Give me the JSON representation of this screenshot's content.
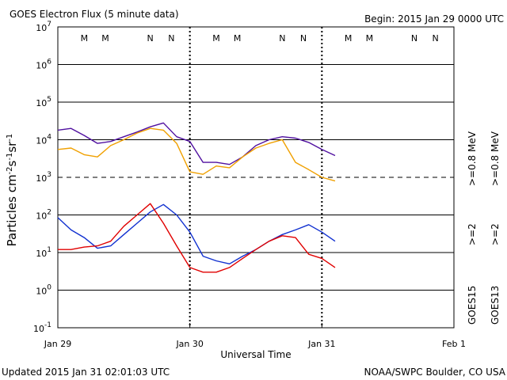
{
  "header": {
    "title": "GOES Electron Flux (5 minute data)",
    "begin": "Begin: 2015 Jan 29 0000 UTC"
  },
  "footer": {
    "updated": "Updated 2015 Jan 31 02:01:03 UTC",
    "source": "NOAA/SWPC Boulder, CO USA"
  },
  "chart_data": {
    "type": "line",
    "title": "GOES Electron Flux (5 minute data)",
    "ylabel": "Particles cm-2s-1sr-1",
    "xlabel": "Universal Time",
    "yscale": "log",
    "ylim": [
      0.1,
      10000000
    ],
    "xlim_days": [
      0,
      3
    ],
    "x_tick_labels": [
      "Jan 29",
      "Jan 30",
      "Jan 31",
      "Feb 1"
    ],
    "y_tick_labels": [
      {
        "base": "10",
        "exp": "-1"
      },
      {
        "base": "10",
        "exp": "0"
      },
      {
        "base": "10",
        "exp": "1"
      },
      {
        "base": "10",
        "exp": "2"
      },
      {
        "base": "10",
        "exp": "3"
      },
      {
        "base": "10",
        "exp": "4"
      },
      {
        "base": "10",
        "exp": "5"
      },
      {
        "base": "10",
        "exp": "6"
      },
      {
        "base": "10",
        "exp": "7"
      }
    ],
    "threshold_level": 1000,
    "day_markers": [
      "M",
      "M",
      "N",
      "N"
    ],
    "marker_colors": [
      "#e00000",
      "#1030d0",
      "#e00000",
      "#1030d0"
    ],
    "legend_left": {
      "label": "GOES15",
      "series": [
        ">=2",
        ">=0.8 MeV"
      ]
    },
    "legend_right": {
      "label": "GOES13",
      "series": [
        ">=2",
        ">=0.8 MeV"
      ]
    },
    "series": [
      {
        "name": ">=0.8 MeV",
        "satellite": "GOES15",
        "color": "#5010a0",
        "x": [
          0,
          0.1,
          0.2,
          0.3,
          0.4,
          0.5,
          0.6,
          0.7,
          0.8,
          0.9,
          1.0,
          1.1,
          1.2,
          1.3,
          1.4,
          1.5,
          1.6,
          1.7,
          1.8,
          1.9,
          2.0,
          2.1
        ],
        "y": [
          18000,
          20000,
          13000,
          8000,
          9000,
          12000,
          16000,
          22000,
          28000,
          12000,
          9000,
          2500,
          2500,
          2200,
          3500,
          7000,
          10000,
          12000,
          11000,
          8500,
          5500,
          3800
        ]
      },
      {
        "name": ">=0.8 MeV",
        "satellite": "GOES13",
        "color": "#f0a000",
        "x": [
          0,
          0.1,
          0.2,
          0.3,
          0.4,
          0.5,
          0.6,
          0.7,
          0.8,
          0.9,
          1.0,
          1.1,
          1.2,
          1.3,
          1.4,
          1.5,
          1.6,
          1.7,
          1.8,
          1.9,
          2.0,
          2.1
        ],
        "y": [
          5500,
          6000,
          4000,
          3500,
          7000,
          10000,
          15000,
          20000,
          18000,
          8000,
          1400,
          1200,
          2000,
          1800,
          3500,
          6000,
          8000,
          10000,
          2500,
          1600,
          1000,
          800
        ]
      },
      {
        "name": ">=2 MeV",
        "satellite": "GOES15",
        "color": "#1030d0",
        "x": [
          0,
          0.1,
          0.2,
          0.3,
          0.4,
          0.5,
          0.6,
          0.7,
          0.8,
          0.9,
          1.0,
          1.1,
          1.2,
          1.3,
          1.4,
          1.5,
          1.6,
          1.7,
          1.8,
          1.9,
          2.0,
          2.1
        ],
        "y": [
          85,
          40,
          25,
          13,
          15,
          30,
          60,
          120,
          190,
          100,
          35,
          8,
          6,
          5,
          8,
          12,
          20,
          30,
          40,
          55,
          35,
          20
        ]
      },
      {
        "name": ">=2 MeV",
        "satellite": "GOES13",
        "color": "#e00000",
        "x": [
          0,
          0.1,
          0.2,
          0.3,
          0.4,
          0.5,
          0.6,
          0.7,
          0.8,
          0.9,
          1.0,
          1.1,
          1.2,
          1.3,
          1.4,
          1.5,
          1.6,
          1.7,
          1.8,
          1.9,
          2.0,
          2.1
        ],
        "y": [
          12,
          12,
          14,
          15,
          20,
          50,
          100,
          200,
          60,
          15,
          4,
          3,
          3,
          4,
          7,
          12,
          20,
          28,
          25,
          9,
          7,
          4
        ]
      }
    ]
  }
}
